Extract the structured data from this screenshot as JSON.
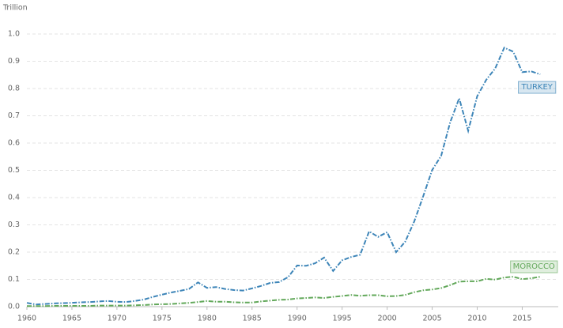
{
  "chart_data": {
    "type": "line",
    "y_axis_label": "Trillion",
    "x": [
      1960,
      1961,
      1962,
      1963,
      1964,
      1965,
      1966,
      1967,
      1968,
      1969,
      1970,
      1971,
      1972,
      1973,
      1974,
      1975,
      1976,
      1977,
      1978,
      1979,
      1980,
      1981,
      1982,
      1983,
      1984,
      1985,
      1986,
      1987,
      1988,
      1989,
      1990,
      1991,
      1992,
      1993,
      1994,
      1995,
      1996,
      1997,
      1998,
      1999,
      2000,
      2001,
      2002,
      2003,
      2004,
      2005,
      2006,
      2007,
      2008,
      2009,
      2010,
      2011,
      2012,
      2013,
      2014,
      2015,
      2016,
      2017
    ],
    "series": [
      {
        "name": "TURKEY",
        "color": "#3d85b8",
        "values": [
          0.014,
          0.008,
          0.01,
          0.012,
          0.013,
          0.014,
          0.016,
          0.017,
          0.019,
          0.021,
          0.018,
          0.017,
          0.021,
          0.026,
          0.036,
          0.044,
          0.052,
          0.058,
          0.065,
          0.089,
          0.069,
          0.072,
          0.065,
          0.061,
          0.059,
          0.067,
          0.076,
          0.087,
          0.09,
          0.108,
          0.151,
          0.15,
          0.159,
          0.18,
          0.131,
          0.17,
          0.182,
          0.19,
          0.276,
          0.256,
          0.273,
          0.2,
          0.238,
          0.312,
          0.405,
          0.501,
          0.553,
          0.676,
          0.764,
          0.645,
          0.772,
          0.832,
          0.874,
          0.95,
          0.935,
          0.86,
          0.863,
          0.852
        ]
      },
      {
        "name": "MOROCCO",
        "color": "#62a85a",
        "values": [
          0.002,
          0.002,
          0.002,
          0.003,
          0.003,
          0.003,
          0.003,
          0.003,
          0.004,
          0.004,
          0.004,
          0.004,
          0.005,
          0.006,
          0.008,
          0.009,
          0.01,
          0.012,
          0.014,
          0.017,
          0.021,
          0.018,
          0.018,
          0.016,
          0.015,
          0.015,
          0.019,
          0.022,
          0.025,
          0.026,
          0.03,
          0.032,
          0.034,
          0.032,
          0.036,
          0.039,
          0.043,
          0.04,
          0.042,
          0.042,
          0.038,
          0.039,
          0.043,
          0.053,
          0.06,
          0.063,
          0.068,
          0.079,
          0.092,
          0.093,
          0.093,
          0.102,
          0.099,
          0.107,
          0.11,
          0.101,
          0.104,
          0.11
        ]
      }
    ],
    "xlim": [
      1960,
      2019
    ],
    "xticks": [
      1960,
      1965,
      1970,
      1975,
      1980,
      1985,
      1990,
      1995,
      2000,
      2005,
      2010,
      2015
    ],
    "ylim": [
      0,
      1
    ],
    "yticks": [
      {
        "value": 0,
        "label": "0.0"
      },
      0.1,
      0.2,
      0.3,
      0.4,
      0.5,
      0.6,
      0.7,
      0.8,
      0.9,
      {
        "value": 1,
        "label": "1.0"
      }
    ],
    "grid": true
  }
}
